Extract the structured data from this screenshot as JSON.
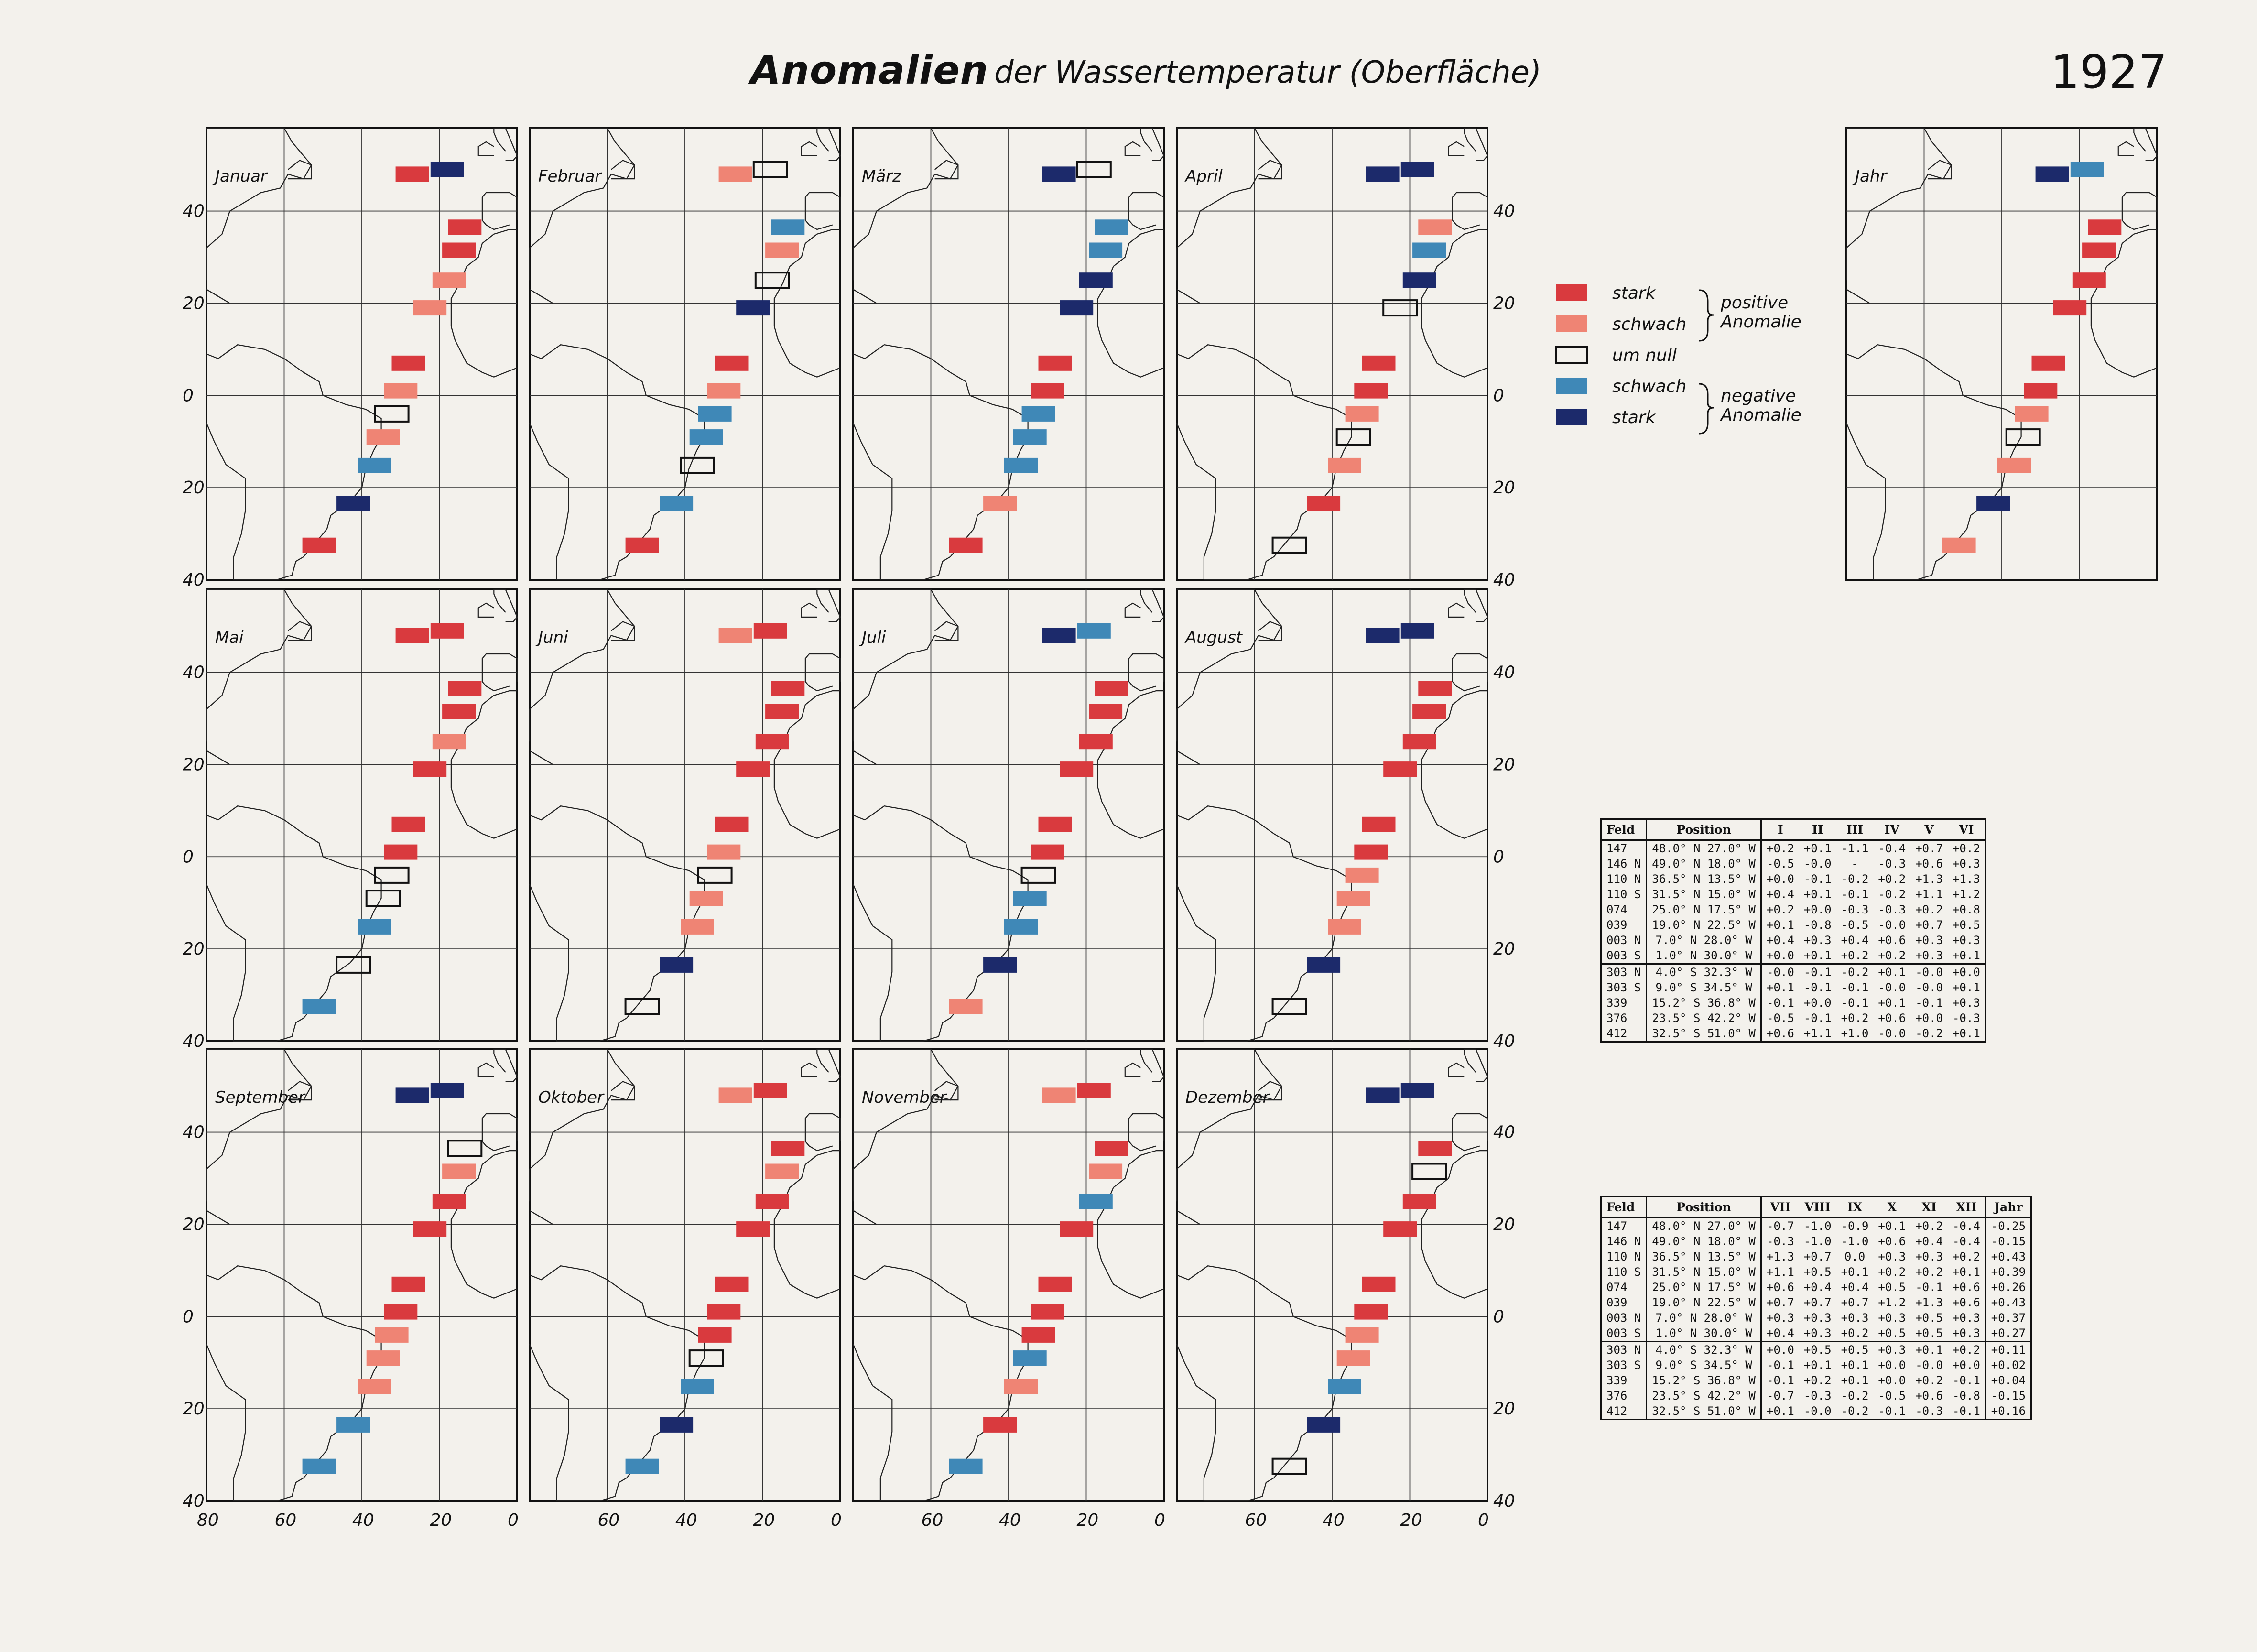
{
  "header": {
    "title_main": "Anomalien",
    "title_sub": "der Wassertemperatur (Oberfläche)",
    "year": "1927"
  },
  "colors": {
    "strong_positive": "#d93a3e",
    "weak_positive": "#ef8474",
    "zero": "none",
    "weak_negative": "#3f88b7",
    "strong_negative": "#1c2a6b"
  },
  "legend": {
    "items": [
      {
        "label": "stark",
        "class": "sp"
      },
      {
        "label": "schwach",
        "class": "wp"
      },
      {
        "label": "um null",
        "class": "z"
      },
      {
        "label": "schwach",
        "class": "wn"
      },
      {
        "label": "stark",
        "class": "sn"
      }
    ],
    "positive_line1": "positive",
    "positive_line2": "Anomalie",
    "negative_line1": "negative",
    "negative_line2": "Anomalie"
  },
  "axes": {
    "lat_ticks": [
      "40",
      "20",
      "0",
      "20",
      "40"
    ],
    "lon_ticks": [
      "80",
      "60",
      "40",
      "20",
      "0"
    ]
  },
  "panels": [
    {
      "name": "Januar"
    },
    {
      "name": "Februar"
    },
    {
      "name": "März"
    },
    {
      "name": "April"
    },
    {
      "name": "Mai"
    },
    {
      "name": "Juni"
    },
    {
      "name": "Juli"
    },
    {
      "name": "August"
    },
    {
      "name": "September"
    },
    {
      "name": "Oktober"
    },
    {
      "name": "November"
    },
    {
      "name": "Dezember"
    },
    {
      "name": "Jahr"
    }
  ],
  "fields": [
    {
      "feld": "147",
      "pos": "48.0° N 27.0° W"
    },
    {
      "feld": "146 N",
      "pos": "49.0° N 18.0° W"
    },
    {
      "feld": "110 N",
      "pos": "36.5° N 13.5° W"
    },
    {
      "feld": "110 S",
      "pos": "31.5° N 15.0° W"
    },
    {
      "feld": "074",
      "pos": "25.0° N 17.5° W"
    },
    {
      "feld": "039",
      "pos": "19.0° N 22.5° W"
    },
    {
      "feld": "003 N",
      "pos": "7.0° N 28.0° W"
    },
    {
      "feld": "003 S",
      "pos": "1.0° N 30.0° W"
    },
    {
      "feld": "303 N",
      "pos": "4.0° S 32.3° W"
    },
    {
      "feld": "303 S",
      "pos": "9.0° S 34.5° W"
    },
    {
      "feld": "339",
      "pos": "15.2° S 36.8° W"
    },
    {
      "feld": "376",
      "pos": "23.5° S 42.2° W"
    },
    {
      "feld": "412",
      "pos": "32.5° S 51.0° W"
    }
  ],
  "anomaly_classes": {
    "Januar": [
      "sp",
      "sn",
      "sp",
      "sp",
      "wp",
      "wp",
      "sp",
      "wp",
      "z",
      "wp",
      "wn",
      "sn",
      "sp"
    ],
    "Februar": [
      "wp",
      "z",
      "wn",
      "wp",
      "z",
      "sn",
      "sp",
      "wp",
      "wn",
      "wn",
      "z",
      "wn",
      "sp"
    ],
    "März": [
      "sn",
      "z",
      "wn",
      "wn",
      "sn",
      "sn",
      "sp",
      "sp",
      "wn",
      "wn",
      "wn",
      "wp",
      "sp"
    ],
    "April": [
      "sn",
      "sn",
      "wp",
      "wn",
      "sn",
      "z",
      "sp",
      "sp",
      "wp",
      "z",
      "wp",
      "sp",
      "z"
    ],
    "Mai": [
      "sp",
      "sp",
      "sp",
      "sp",
      "wp",
      "sp",
      "sp",
      "sp",
      "z",
      "z",
      "wn",
      "z",
      "wn"
    ],
    "Juni": [
      "wp",
      "sp",
      "sp",
      "sp",
      "sp",
      "sp",
      "sp",
      "wp",
      "z",
      "wp",
      "wp",
      "sn",
      "z"
    ],
    "Juli": [
      "sn",
      "wn",
      "sp",
      "sp",
      "sp",
      "sp",
      "sp",
      "sp",
      "z",
      "wn",
      "wn",
      "sn",
      "wp"
    ],
    "August": [
      "sn",
      "sn",
      "sp",
      "sp",
      "sp",
      "sp",
      "sp",
      "sp",
      "wp",
      "wp",
      "wp",
      "sn",
      "z"
    ],
    "September": [
      "sn",
      "sn",
      "z",
      "wp",
      "sp",
      "sp",
      "sp",
      "sp",
      "wp",
      "wp",
      "wp",
      "wn",
      "wn"
    ],
    "Oktober": [
      "wp",
      "sp",
      "sp",
      "wp",
      "sp",
      "sp",
      "sp",
      "sp",
      "sp",
      "z",
      "wn",
      "sn",
      "wn"
    ],
    "November": [
      "wp",
      "sp",
      "sp",
      "wp",
      "wn",
      "sp",
      "sp",
      "sp",
      "sp",
      "wn",
      "wp",
      "sp",
      "wn"
    ],
    "Dezember": [
      "sn",
      "sn",
      "sp",
      "z",
      "sp",
      "sp",
      "sp",
      "sp",
      "wp",
      "wp",
      "wn",
      "sn",
      "z"
    ],
    "Jahr": [
      "sn",
      "wn",
      "sp",
      "sp",
      "sp",
      "sp",
      "sp",
      "sp",
      "wp",
      "z",
      "wp",
      "sn",
      "wp"
    ]
  },
  "table1": {
    "headers": [
      "Feld",
      "Position",
      "I",
      "II",
      "III",
      "IV",
      "V",
      "VI"
    ],
    "rows": [
      [
        "147",
        "48.0° N 27.0° W",
        "+0.2",
        "+0.1",
        "-1.1",
        "-0.4",
        "+0.7",
        "+0.2"
      ],
      [
        "146 N",
        "49.0° N 18.0° W",
        "-0.5",
        "-0.0",
        "-",
        "-0.3",
        "+0.6",
        "+0.3"
      ],
      [
        "110 N",
        "36.5° N 13.5° W",
        "+0.0",
        "-0.1",
        "-0.2",
        "+0.2",
        "+1.3",
        "+1.3"
      ],
      [
        "110 S",
        "31.5° N 15.0° W",
        "+0.4",
        "+0.1",
        "-0.1",
        "-0.2",
        "+1.1",
        "+1.2"
      ],
      [
        "074",
        "25.0° N 17.5° W",
        "+0.2",
        "+0.0",
        "-0.3",
        "-0.3",
        "+0.2",
        "+0.8"
      ],
      [
        "039",
        "19.0° N 22.5° W",
        "+0.1",
        "-0.8",
        "-0.5",
        "-0.0",
        "+0.7",
        "+0.5"
      ],
      [
        "003 N",
        "7.0° N 28.0° W",
        "+0.4",
        "+0.3",
        "+0.4",
        "+0.6",
        "+0.3",
        "+0.3"
      ],
      [
        "003 S",
        "1.0° N 30.0° W",
        "+0.0",
        "+0.1",
        "+0.2",
        "+0.2",
        "+0.3",
        "+0.1"
      ],
      [
        "303 N",
        "4.0° S 32.3° W",
        "-0.0",
        "-0.1",
        "-0.2",
        "+0.1",
        "-0.0",
        "+0.0"
      ],
      [
        "303 S",
        "9.0° S 34.5° W",
        "+0.1",
        "-0.1",
        "-0.1",
        "-0.0",
        "-0.0",
        "+0.1"
      ],
      [
        "339",
        "15.2° S 36.8° W",
        "-0.1",
        "+0.0",
        "-0.1",
        "+0.1",
        "-0.1",
        "+0.3"
      ],
      [
        "376",
        "23.5° S 42.2° W",
        "-0.5",
        "-0.1",
        "+0.2",
        "+0.6",
        "+0.0",
        "-0.3"
      ],
      [
        "412",
        "32.5° S 51.0° W",
        "+0.6",
        "+1.1",
        "+1.0",
        "-0.0",
        "-0.2",
        "+0.1"
      ]
    ]
  },
  "table2": {
    "headers": [
      "Feld",
      "Position",
      "VII",
      "VIII",
      "IX",
      "X",
      "XI",
      "XII",
      "Jahr"
    ],
    "rows": [
      [
        "147",
        "48.0° N 27.0° W",
        "-0.7",
        "-1.0",
        "-0.9",
        "+0.1",
        "+0.2",
        "-0.4",
        "-0.25"
      ],
      [
        "146 N",
        "49.0° N 18.0° W",
        "-0.3",
        "-1.0",
        "-1.0",
        "+0.6",
        "+0.4",
        "-0.4",
        "-0.15"
      ],
      [
        "110 N",
        "36.5° N 13.5° W",
        "+1.3",
        "+0.7",
        "0.0",
        "+0.3",
        "+0.3",
        "+0.2",
        "+0.43"
      ],
      [
        "110 S",
        "31.5° N 15.0° W",
        "+1.1",
        "+0.5",
        "+0.1",
        "+0.2",
        "+0.2",
        "+0.1",
        "+0.39"
      ],
      [
        "074",
        "25.0° N 17.5° W",
        "+0.6",
        "+0.4",
        "+0.4",
        "+0.5",
        "-0.1",
        "+0.6",
        "+0.26"
      ],
      [
        "039",
        "19.0° N 22.5° W",
        "+0.7",
        "+0.7",
        "+0.7",
        "+1.2",
        "+1.3",
        "+0.6",
        "+0.43"
      ],
      [
        "003 N",
        "7.0° N 28.0° W",
        "+0.3",
        "+0.3",
        "+0.3",
        "+0.3",
        "+0.5",
        "+0.3",
        "+0.37"
      ],
      [
        "003 S",
        "1.0° N 30.0° W",
        "+0.4",
        "+0.3",
        "+0.2",
        "+0.5",
        "+0.5",
        "+0.3",
        "+0.27"
      ],
      [
        "303 N",
        "4.0° S 32.3° W",
        "+0.0",
        "+0.5",
        "+0.5",
        "+0.3",
        "+0.1",
        "+0.2",
        "+0.11"
      ],
      [
        "303 S",
        "9.0° S 34.5° W",
        "-0.1",
        "+0.1",
        "+0.1",
        "+0.0",
        "-0.0",
        "+0.0",
        "+0.02"
      ],
      [
        "339",
        "15.2° S 36.8° W",
        "-0.1",
        "+0.2",
        "+0.1",
        "+0.0",
        "+0.2",
        "-0.1",
        "+0.04"
      ],
      [
        "376",
        "23.5° S 42.2° W",
        "-0.7",
        "-0.3",
        "-0.2",
        "-0.5",
        "+0.6",
        "-0.8",
        "-0.15"
      ],
      [
        "412",
        "32.5° S 51.0° W",
        "+0.1",
        "-0.0",
        "-0.2",
        "-0.1",
        "-0.3",
        "-0.1",
        "+0.16"
      ]
    ]
  }
}
